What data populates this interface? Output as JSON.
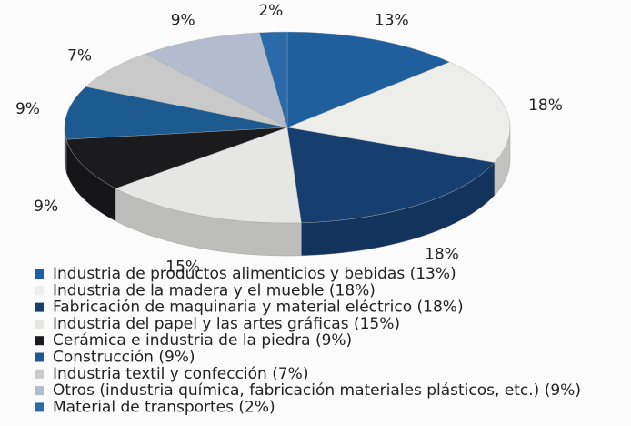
{
  "chart_data": {
    "type": "pie",
    "categories": [
      "Industria de productos alimenticios y bebidas (13%)",
      "Industria de la madera y el mueble (18%)",
      "Fabricación de maquinaria y material eléctrico  (18%)",
      "Industria del papel y las artes gráficas (15%)",
      "Cerámica e industria de la piedra (9%)",
      "Construcción (9%)",
      "Industria textil y confección (7%)",
      "Otros (industria química, fabricación materiales plásticos, etc.) (9%)",
      "Material de transportes (2%)"
    ],
    "values": [
      13,
      18,
      18,
      15,
      9,
      9,
      7,
      9,
      2
    ],
    "value_labels": [
      "13%",
      "18%",
      "18%",
      "15%",
      "9%",
      "9%",
      "7%",
      "9%",
      "2%"
    ],
    "colors": [
      "#1f5f9e",
      "#ededea",
      "#163f70",
      "#e6e6e4",
      "#1b1b1e",
      "#1d5a90",
      "#c9c9c9",
      "#b3bccd",
      "#2a6aa8"
    ]
  }
}
